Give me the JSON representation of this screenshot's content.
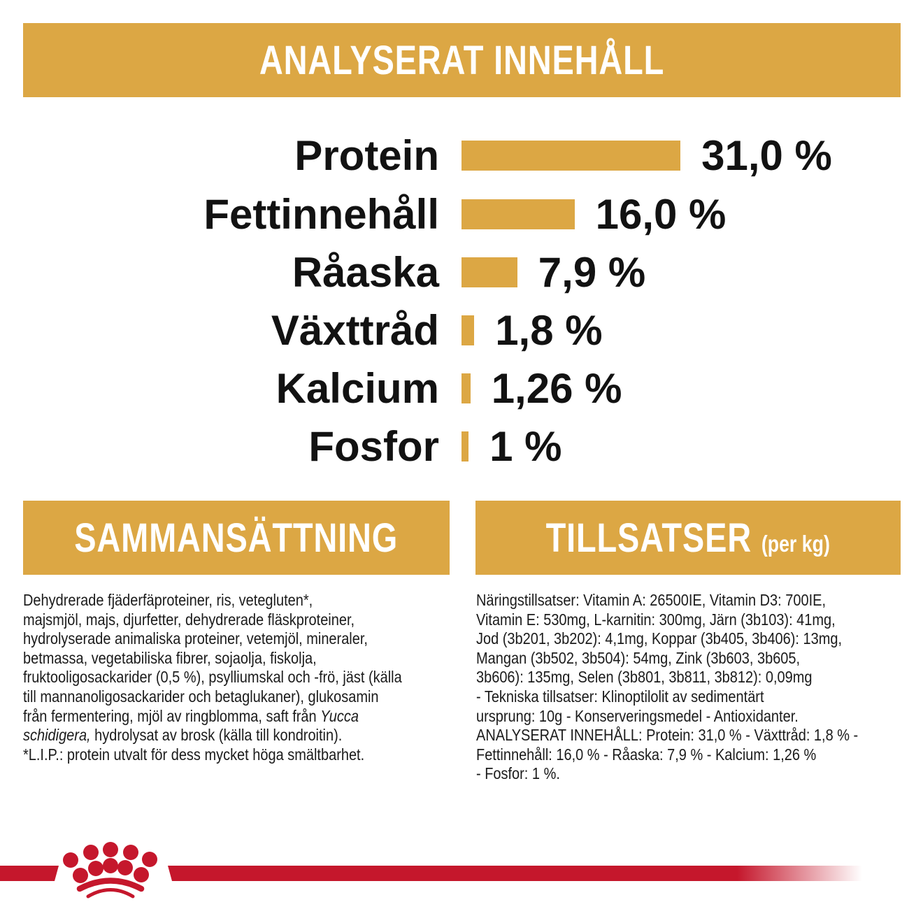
{
  "header": {
    "title": "ANALYSERAT INNEHÅLL"
  },
  "chart_data": {
    "type": "bar",
    "title": "ANALYSERAT INNEHÅLL",
    "orientation": "horizontal",
    "unit": "%",
    "categories": [
      "Protein",
      "Fettinnehåll",
      "Råaska",
      "Växttråd",
      "Kalcium",
      "Fosfor"
    ],
    "values": [
      31.0,
      16.0,
      7.9,
      1.8,
      1.26,
      1.0
    ],
    "rows": [
      {
        "label": "Protein",
        "value": 31.0,
        "value_label": "31,0 %"
      },
      {
        "label": "Fettinnehåll",
        "value": 16.0,
        "value_label": "16,0 %"
      },
      {
        "label": "Råaska",
        "value": 7.9,
        "value_label": "7,9 %"
      },
      {
        "label": "Växttråd",
        "value": 1.8,
        "value_label": "1,8 %"
      },
      {
        "label": "Kalcium",
        "value": 1.26,
        "value_label": "1,26 %"
      },
      {
        "label": "Fosfor",
        "value": 1.0,
        "value_label": "1 %"
      }
    ],
    "xlim": [
      0,
      31
    ],
    "grid": false,
    "legend": false,
    "bar_color": "#DCA744"
  },
  "sections": {
    "composition": {
      "title": "SAMMANSÄTTNING",
      "lines": [
        "Dehydrerade fjäderfäproteiner, ris, vetegluten*,",
        "majsmjöl, majs, djurfetter, dehydrerade fläskproteiner,",
        "hydrolyserade animaliska proteiner, vetemjöl, mineraler,",
        "betmassa, vegetabiliska fibrer, sojaolja, fiskolja,",
        "fruktooligosackarider (0,5 %), psylliumskal och -frö, jäst (källa",
        "till mannanoligosackarider och betaglukaner), glukosamin"
      ],
      "line7": {
        "normal": "från fermentering, mjöl av ringblomma, saft från ",
        "italic": "Yucca"
      },
      "line8": {
        "italic": "schidigera,",
        "normal": " hydrolysat av brosk (källa till kondroitin)."
      },
      "line9": "*L.I.P.: protein utvalt för dess mycket höga smältbarhet."
    },
    "additives": {
      "title": "TILLSATSER",
      "title_suffix": "(per kg)",
      "lines": [
        "Näringstillsatser: Vitamin A: 26500IE, Vitamin D3: 700IE,",
        "Vitamin E: 530mg, L-karnitin: 300mg, Järn (3b103): 41mg,",
        "Jod (3b201, 3b202): 4,1mg, Koppar (3b405, 3b406): 13mg,",
        "Mangan (3b502, 3b504): 54mg, Zink (3b603, 3b605,",
        "3b606): 135mg, Selen (3b801, 3b811, 3b812): 0,09mg",
        "- Tekniska tillsatser: Klinoptilolit av sedimentärt",
        "ursprung: 10g - Konserveringsmedel - Antioxidanter.",
        "ANALYSERAT INNEHÅLL: Protein: 31,0 % - Växttråd: 1,8 % -",
        "Fettinnehåll: 16,0 % - Råaska: 7,9 % - Kalcium: 1,26 %",
        "- Fosfor: 1 %."
      ]
    }
  },
  "footer": {
    "logo": "royal-canin-crown-logo"
  },
  "colors": {
    "gold": "#DCA744",
    "red": "#C5172C",
    "text": "#141414"
  }
}
